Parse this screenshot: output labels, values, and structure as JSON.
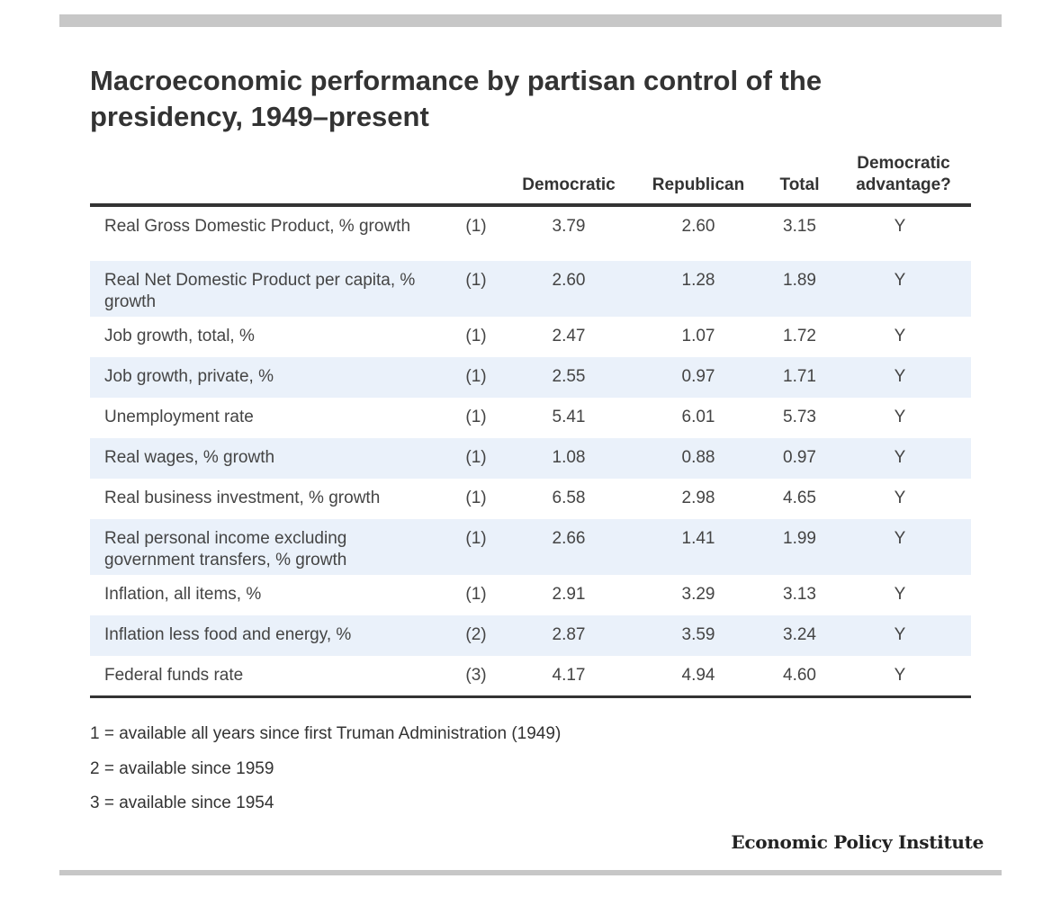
{
  "title": "Macroeconomic performance by partisan control of the presidency, 1949–present",
  "columns": {
    "label": "",
    "note": "",
    "democratic": "Democratic",
    "republican": "Republican",
    "total": "Total",
    "advantage": "Democratic advantage?"
  },
  "rows": [
    {
      "label": "Real Gross Domestic Product, % growth",
      "note": "(1)",
      "democratic": "3.79",
      "republican": "2.60",
      "total": "3.15",
      "advantage": "Y"
    },
    {
      "label": "Real Net Domestic Product per capita, % growth",
      "note": "(1)",
      "democratic": "2.60",
      "republican": "1.28",
      "total": "1.89",
      "advantage": "Y"
    },
    {
      "label": "Job growth, total, %",
      "note": "(1)",
      "democratic": "2.47",
      "republican": "1.07",
      "total": "1.72",
      "advantage": "Y"
    },
    {
      "label": "Job growth, private, %",
      "note": "(1)",
      "democratic": "2.55",
      "republican": "0.97",
      "total": "1.71",
      "advantage": "Y"
    },
    {
      "label": "Unemployment rate",
      "note": "(1)",
      "democratic": "5.41",
      "republican": "6.01",
      "total": "5.73",
      "advantage": "Y"
    },
    {
      "label": "Real wages, % growth",
      "note": "(1)",
      "democratic": "1.08",
      "republican": "0.88",
      "total": "0.97",
      "advantage": "Y"
    },
    {
      "label": "Real business investment, % growth",
      "note": "(1)",
      "democratic": "6.58",
      "republican": "2.98",
      "total": "4.65",
      "advantage": "Y"
    },
    {
      "label": "Real personal income excluding government transfers, % growth",
      "note": "(1)",
      "democratic": "2.66",
      "republican": "1.41",
      "total": "1.99",
      "advantage": "Y"
    },
    {
      "label": "Inflation, all items, %",
      "note": "(1)",
      "democratic": "2.91",
      "republican": "3.29",
      "total": "3.13",
      "advantage": "Y"
    },
    {
      "label": "Inflation less food and energy, %",
      "note": "(2)",
      "democratic": "2.87",
      "republican": "3.59",
      "total": "3.24",
      "advantage": "Y"
    },
    {
      "label": "Federal funds rate",
      "note": "(3)",
      "democratic": "4.17",
      "republican": "4.94",
      "total": "4.60",
      "advantage": "Y"
    }
  ],
  "notes": [
    "1 = available all years since first Truman Administration (1949)",
    "2 = available since 1959",
    "3 = available since 1954"
  ],
  "source": "Economic Policy Institute",
  "chart_data": {
    "type": "table",
    "title": "Macroeconomic performance by partisan control of the presidency, 1949–present",
    "columns": [
      "",
      "",
      "Democratic",
      "Republican",
      "Total",
      "Democratic advantage?"
    ],
    "rows": [
      [
        "Real Gross Domestic Product, % growth",
        "(1)",
        3.79,
        2.6,
        3.15,
        "Y"
      ],
      [
        "Real Net Domestic Product per capita, % growth",
        "(1)",
        2.6,
        1.28,
        1.89,
        "Y"
      ],
      [
        "Job growth, total, %",
        "(1)",
        2.47,
        1.07,
        1.72,
        "Y"
      ],
      [
        "Job growth, private, %",
        "(1)",
        2.55,
        0.97,
        1.71,
        "Y"
      ],
      [
        "Unemployment rate",
        "(1)",
        5.41,
        6.01,
        5.73,
        "Y"
      ],
      [
        "Real wages, % growth",
        "(1)",
        1.08,
        0.88,
        0.97,
        "Y"
      ],
      [
        "Real business investment, % growth",
        "(1)",
        6.58,
        2.98,
        4.65,
        "Y"
      ],
      [
        "Real personal income excluding government transfers, % growth",
        "(1)",
        2.66,
        1.41,
        1.99,
        "Y"
      ],
      [
        "Inflation, all items, %",
        "(1)",
        2.91,
        3.29,
        3.13,
        "Y"
      ],
      [
        "Inflation less food and energy, %",
        "(2)",
        2.87,
        3.59,
        3.24,
        "Y"
      ],
      [
        "Federal funds rate",
        "(3)",
        4.17,
        4.94,
        4.6,
        "Y"
      ]
    ]
  }
}
